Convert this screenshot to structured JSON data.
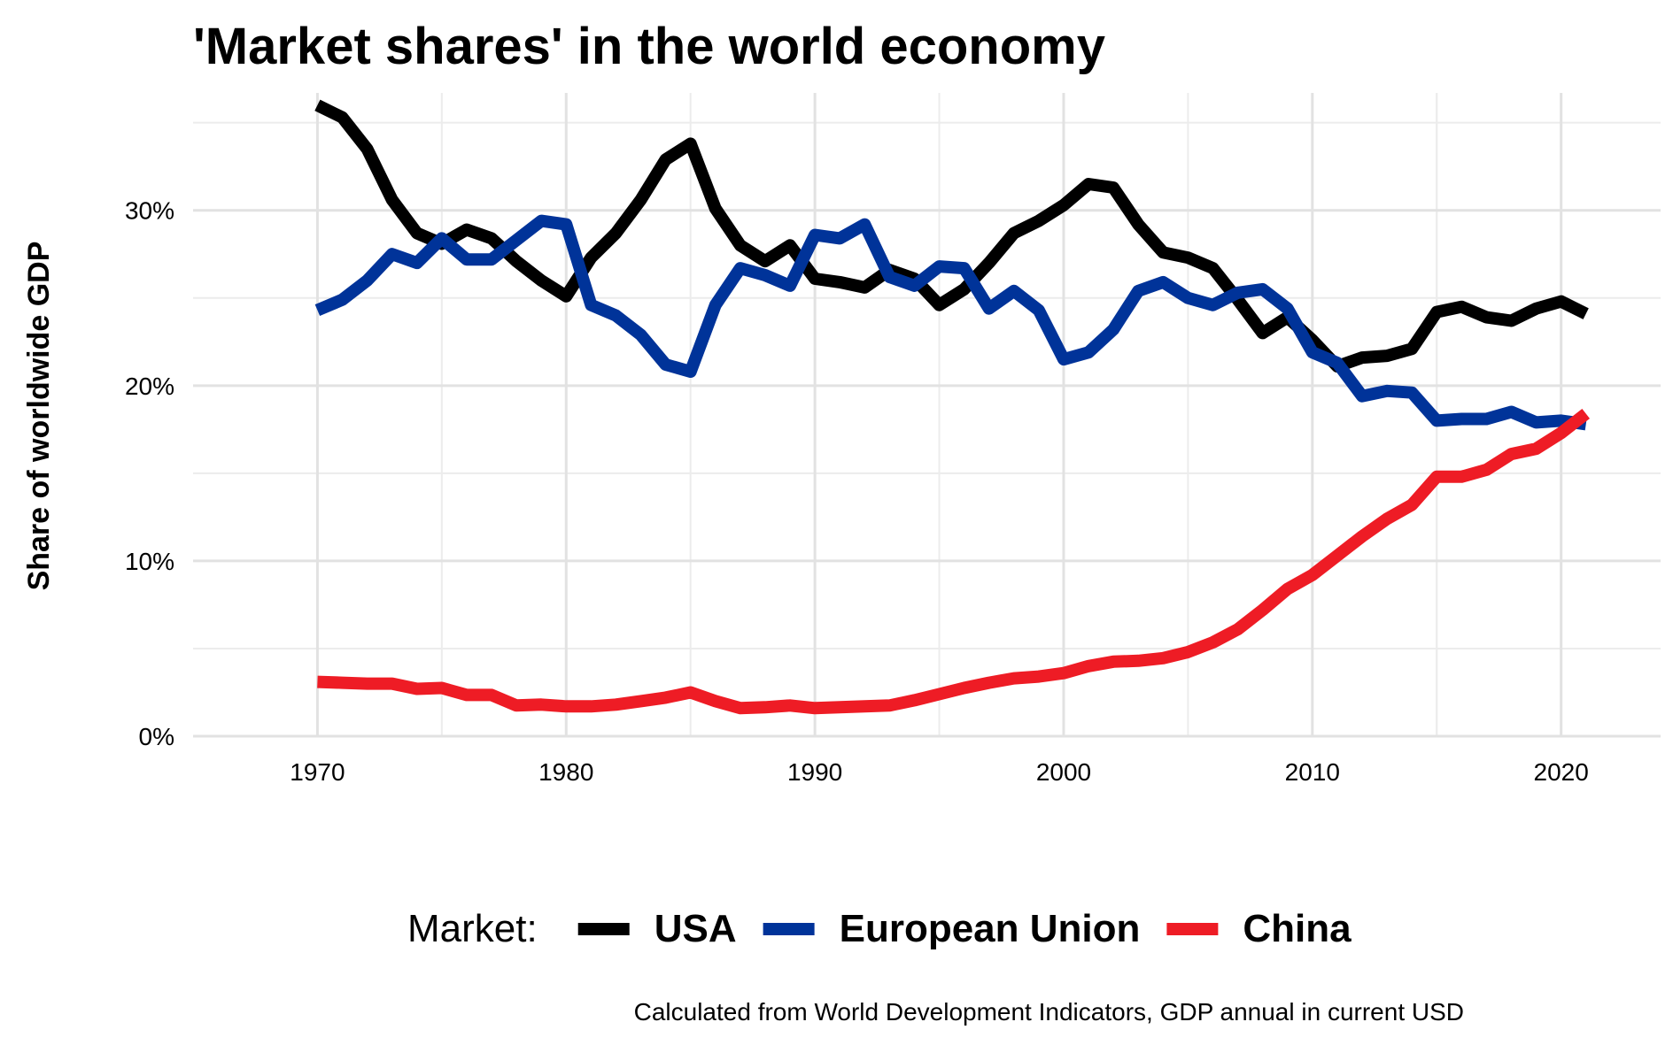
{
  "chart_data": {
    "type": "line",
    "title": "'Market shares' in the world economy",
    "xlabel": "",
    "ylabel": "Share of worldwide GDP",
    "caption": "Calculated from World Development Indicators, GDP annual in current USD",
    "legend_title": "Market:",
    "legend_position": "bottom",
    "grid": true,
    "xlim": [
      1965,
      2024
    ],
    "ylim": [
      0,
      36.7
    ],
    "x_ticks": [
      1970,
      1980,
      1990,
      2000,
      2010,
      2020
    ],
    "y_ticks": [
      0,
      10,
      20,
      30
    ],
    "x_tick_labels": [
      "1970",
      "1980",
      "1990",
      "2000",
      "2010",
      "2020"
    ],
    "y_tick_labels": [
      "0%",
      "10%",
      "20%",
      "30%"
    ],
    "x": [
      1970,
      1971,
      1972,
      1973,
      1974,
      1975,
      1976,
      1977,
      1978,
      1979,
      1980,
      1981,
      1982,
      1983,
      1984,
      1985,
      1986,
      1987,
      1988,
      1989,
      1990,
      1991,
      1992,
      1993,
      1994,
      1995,
      1996,
      1997,
      1998,
      1999,
      2000,
      2001,
      2002,
      2003,
      2004,
      2005,
      2006,
      2007,
      2008,
      2009,
      2010,
      2011,
      2012,
      2013,
      2014,
      2015,
      2016,
      2017,
      2018,
      2019,
      2020,
      2021
    ],
    "series": [
      {
        "name": "USA",
        "color": "#000000",
        "values": [
          36.0,
          35.3,
          33.5,
          30.6,
          28.7,
          28.1,
          28.9,
          28.4,
          27.1,
          26.0,
          25.1,
          27.3,
          28.7,
          30.6,
          32.9,
          33.8,
          30.1,
          28.0,
          27.1,
          28.0,
          26.1,
          25.9,
          25.6,
          26.6,
          26.1,
          24.6,
          25.5,
          27.0,
          28.7,
          29.4,
          30.3,
          31.5,
          31.3,
          29.2,
          27.6,
          27.3,
          26.7,
          24.9,
          23.0,
          23.9,
          22.6,
          21.1,
          21.6,
          21.7,
          22.1,
          24.2,
          24.5,
          23.9,
          23.7,
          24.4,
          24.8,
          24.1
        ]
      },
      {
        "name": "European Union",
        "color": "#003399",
        "values": [
          24.3,
          24.9,
          26.0,
          27.5,
          27.0,
          28.4,
          27.2,
          27.2,
          28.3,
          29.4,
          29.2,
          24.6,
          24.0,
          22.9,
          21.2,
          20.8,
          24.6,
          26.7,
          26.3,
          25.7,
          28.6,
          28.4,
          29.2,
          26.2,
          25.7,
          26.8,
          26.7,
          24.4,
          25.4,
          24.3,
          21.5,
          21.9,
          23.2,
          25.4,
          25.9,
          25.0,
          24.6,
          25.3,
          25.5,
          24.4,
          21.9,
          21.3,
          19.4,
          19.7,
          19.6,
          18.0,
          18.1,
          18.1,
          18.5,
          17.9,
          18.0,
          17.8
        ]
      },
      {
        "name": "China",
        "color": "#ee1c25",
        "values": [
          3.1,
          3.05,
          3.0,
          3.0,
          2.7,
          2.75,
          2.35,
          2.35,
          1.75,
          1.8,
          1.7,
          1.7,
          1.8,
          2.0,
          2.2,
          2.5,
          2.0,
          1.6,
          1.65,
          1.75,
          1.6,
          1.65,
          1.7,
          1.75,
          2.05,
          2.4,
          2.75,
          3.05,
          3.3,
          3.4,
          3.6,
          4.0,
          4.25,
          4.3,
          4.45,
          4.8,
          5.35,
          6.1,
          7.2,
          8.4,
          9.2,
          10.3,
          11.4,
          12.4,
          13.2,
          14.8,
          14.8,
          15.2,
          16.1,
          16.4,
          17.3,
          18.4
        ]
      }
    ]
  }
}
